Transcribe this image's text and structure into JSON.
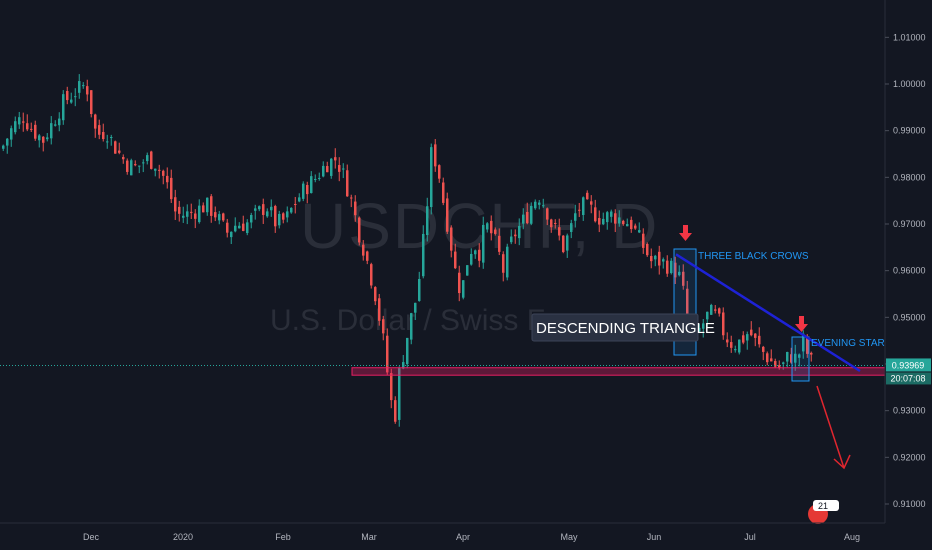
{
  "watermark": {
    "symbol": "USDCHF, D",
    "name": "U.S. Dollar / Swiss Franc"
  },
  "colors": {
    "background": "#131722",
    "up": "#26a69a",
    "down": "#ef5350",
    "trendline": "#1e22d6",
    "support_zone": "#e91e63",
    "annotation_text": "#2196f3",
    "arrow": "#f23645"
  },
  "chart_data": {
    "type": "candlestick",
    "ylim": [
      0.91,
      1.015
    ],
    "yticks": [
      "1.01000",
      "1.00000",
      "0.99000",
      "0.98000",
      "0.97000",
      "0.96000",
      "0.95000",
      "0.94000",
      "0.93000",
      "0.92000",
      "0.91000"
    ],
    "xticks": [
      "Dec",
      "2020",
      "Feb",
      "Mar",
      "Apr",
      "May",
      "Jun",
      "Jul",
      "Aug"
    ],
    "price_label": "0.93969",
    "countdown_label": "20:07:08",
    "last_price": 0.93969,
    "support_zone": [
      0.9376,
      0.9392
    ],
    "trendline": {
      "from": [
        "2020-06-05",
        0.9635
      ],
      "to": [
        "2020-07-27",
        0.9385
      ]
    },
    "projection_arrow": {
      "from": [
        "2020-07-17",
        0.9385
      ],
      "to": [
        "2020-07-28",
        0.9205
      ]
    },
    "annotations": {
      "three_black_crows": "THREE BLACK CROWS",
      "evening_star": "EVENING STAR",
      "descending_triangle": "DESCENDING TRIANGLE"
    },
    "badge": "21"
  }
}
